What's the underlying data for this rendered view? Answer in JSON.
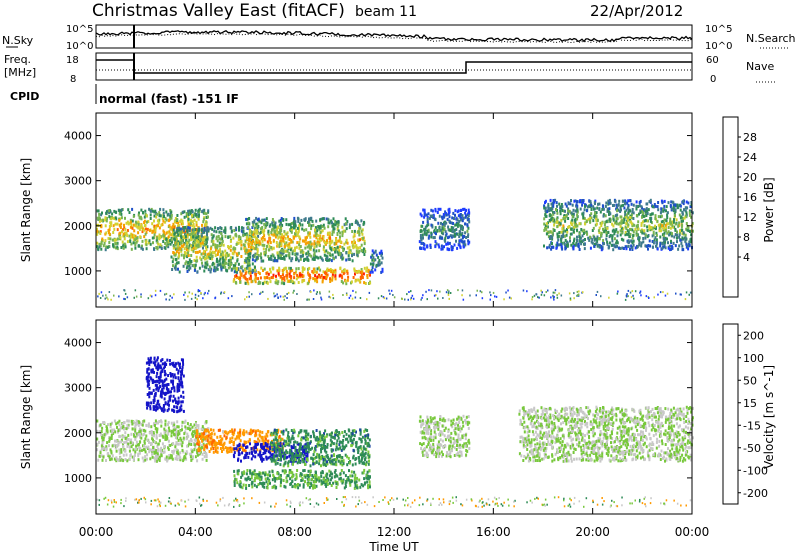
{
  "header": {
    "title": "Christmas Valley East (fitACF)",
    "beam": "beam 11",
    "date": "22/Apr/2012"
  },
  "noise_panel": {
    "left_label": "N.Sky",
    "right_label": "N.Search",
    "tick_top": "10^5",
    "tick_bottom": "10^0"
  },
  "freq_panel": {
    "left_label_1": "Freq.",
    "left_label_2": "[MHz]",
    "right_label": "Nave",
    "left_tick_top": "18",
    "left_tick_bottom": "8",
    "right_tick_top": "60",
    "right_tick_bottom": "0"
  },
  "cpid": {
    "label": "CPID",
    "text": "normal (fast) -151 IF"
  },
  "chart_data": [
    {
      "type": "heatmap",
      "name": "power",
      "ylabel": "Slant Range [km]",
      "xlabel": "Time UT",
      "yticks": [
        "1000",
        "2000",
        "3000",
        "4000"
      ],
      "xticks": [
        "00:00",
        "04:00",
        "08:00",
        "12:00",
        "16:00",
        "20:00",
        "00:00"
      ],
      "ylim": [
        200,
        4500
      ],
      "xlim_hours": [
        0,
        24
      ],
      "colorbar": {
        "label": "Power [dB]",
        "ticks": [
          "28",
          "24",
          "20",
          "16",
          "12",
          "8",
          "4"
        ],
        "range": [
          0,
          30
        ]
      },
      "regions": [
        {
          "t0": 0.0,
          "t1": 4.5,
          "r0": 1500,
          "r1": 2400,
          "level": 22
        },
        {
          "t0": 3.0,
          "t1": 6.5,
          "r0": 1000,
          "r1": 2000,
          "level": 20
        },
        {
          "t0": 5.5,
          "t1": 11.0,
          "r0": 750,
          "r1": 1100,
          "level": 27
        },
        {
          "t0": 6.0,
          "t1": 10.8,
          "r0": 1250,
          "r1": 2200,
          "level": 21
        },
        {
          "t0": 11.0,
          "t1": 11.5,
          "r0": 1000,
          "r1": 1500,
          "level": 14
        },
        {
          "t0": 13.0,
          "t1": 15.0,
          "r0": 1500,
          "r1": 2400,
          "level": 12
        },
        {
          "t0": 18.0,
          "t1": 24.0,
          "r0": 1500,
          "r1": 2600,
          "level": 17
        }
      ]
    },
    {
      "type": "heatmap",
      "name": "velocity",
      "ylabel": "Slant Range [km]",
      "xlabel": "Time UT",
      "yticks": [
        "1000",
        "2000",
        "3000",
        "4000"
      ],
      "xticks": [
        "00:00",
        "04:00",
        "08:00",
        "12:00",
        "16:00",
        "20:00",
        "00:00"
      ],
      "ylim": [
        200,
        4500
      ],
      "xlim_hours": [
        0,
        24
      ],
      "colorbar": {
        "label": "Velocity [m s^-1]",
        "ticks": [
          "200",
          "100",
          "50",
          "15",
          "-15",
          "-50",
          "-100",
          "-200"
        ],
        "range": [
          -200,
          200
        ]
      },
      "regions": [
        {
          "t0": 0.0,
          "t1": 4.5,
          "r0": 1400,
          "r1": 2300,
          "level": 0
        },
        {
          "t0": 2.0,
          "t1": 3.5,
          "r0": 2500,
          "r1": 3700,
          "level": 200
        },
        {
          "t0": 4.0,
          "t1": 7.5,
          "r0": 1600,
          "r1": 2100,
          "level": -60
        },
        {
          "t0": 5.5,
          "t1": 8.5,
          "r0": 1400,
          "r1": 1800,
          "level": 220
        },
        {
          "t0": 5.5,
          "t1": 11.0,
          "r0": 800,
          "r1": 1200,
          "level": 40
        },
        {
          "t0": 7.0,
          "t1": 11.0,
          "r0": 1300,
          "r1": 2100,
          "level": 50
        },
        {
          "t0": 13.0,
          "t1": 15.0,
          "r0": 1500,
          "r1": 2400,
          "level": 0
        },
        {
          "t0": 17.0,
          "t1": 24.0,
          "r0": 1400,
          "r1": 2600,
          "level": 0
        }
      ]
    }
  ]
}
